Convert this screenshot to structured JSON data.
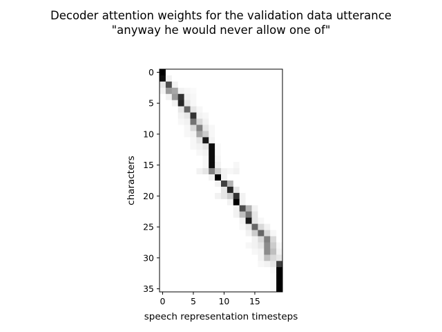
{
  "chart_data": {
    "type": "heatmap",
    "title": "Decoder attention weights for the validation data utterance",
    "subtitle": "\"anyway he would never allow one of\"",
    "xlabel": "speech representation timesteps",
    "ylabel": "characters",
    "x_ticks": [
      "0",
      "5",
      "10",
      "15"
    ],
    "y_ticks": [
      "0",
      "5",
      "10",
      "15",
      "20",
      "25",
      "30",
      "35"
    ],
    "n_cols": 20,
    "n_rows": 36,
    "colormap": "greys",
    "color_low": "#ffffff",
    "color_high": "#000000",
    "weights": [
      [
        1.0,
        0,
        0,
        0,
        0,
        0,
        0,
        0,
        0,
        0,
        0,
        0,
        0,
        0,
        0,
        0,
        0,
        0,
        0,
        0
      ],
      [
        0.95,
        0.05,
        0,
        0,
        0,
        0,
        0,
        0,
        0,
        0,
        0,
        0,
        0,
        0,
        0,
        0,
        0,
        0,
        0,
        0
      ],
      [
        0.1,
        0.7,
        0.05,
        0,
        0,
        0,
        0,
        0,
        0,
        0,
        0,
        0,
        0,
        0,
        0,
        0,
        0,
        0,
        0,
        0
      ],
      [
        0.05,
        0.4,
        0.35,
        0.05,
        0.03,
        0.02,
        0,
        0,
        0,
        0,
        0,
        0,
        0,
        0,
        0,
        0,
        0,
        0,
        0,
        0
      ],
      [
        0,
        0.05,
        0.4,
        0.8,
        0.05,
        0.03,
        0,
        0,
        0,
        0,
        0,
        0,
        0,
        0,
        0,
        0,
        0,
        0,
        0,
        0
      ],
      [
        0,
        0,
        0.05,
        0.85,
        0.1,
        0.03,
        0,
        0,
        0,
        0,
        0,
        0,
        0,
        0,
        0,
        0,
        0,
        0,
        0,
        0
      ],
      [
        0,
        0,
        0,
        0.1,
        0.6,
        0.1,
        0.03,
        0,
        0,
        0,
        0,
        0,
        0,
        0,
        0,
        0,
        0,
        0,
        0,
        0
      ],
      [
        0,
        0,
        0,
        0.05,
        0.1,
        0.8,
        0.05,
        0.03,
        0,
        0,
        0,
        0,
        0,
        0,
        0,
        0,
        0,
        0,
        0,
        0
      ],
      [
        0,
        0,
        0,
        0.03,
        0.05,
        0.55,
        0.15,
        0.05,
        0,
        0,
        0,
        0,
        0,
        0,
        0,
        0,
        0,
        0,
        0,
        0
      ],
      [
        0,
        0,
        0,
        0,
        0.03,
        0.15,
        0.5,
        0.1,
        0.03,
        0,
        0,
        0,
        0,
        0,
        0,
        0,
        0,
        0,
        0,
        0
      ],
      [
        0,
        0,
        0,
        0,
        0.03,
        0.05,
        0.35,
        0.2,
        0.03,
        0,
        0,
        0,
        0,
        0,
        0,
        0,
        0,
        0,
        0,
        0
      ],
      [
        0,
        0,
        0,
        0,
        0,
        0.03,
        0.1,
        0.9,
        0.05,
        0,
        0,
        0,
        0,
        0,
        0,
        0,
        0,
        0,
        0,
        0
      ],
      [
        0,
        0,
        0,
        0,
        0,
        0.03,
        0.05,
        0.1,
        0.95,
        0.02,
        0,
        0,
        0,
        0,
        0,
        0,
        0,
        0,
        0,
        0
      ],
      [
        0,
        0,
        0,
        0,
        0,
        0,
        0.03,
        0.05,
        0.95,
        0.02,
        0,
        0,
        0,
        0,
        0,
        0,
        0,
        0,
        0,
        0
      ],
      [
        0,
        0,
        0,
        0,
        0,
        0,
        0,
        0.03,
        0.95,
        0.03,
        0,
        0,
        0,
        0,
        0,
        0,
        0,
        0,
        0,
        0
      ],
      [
        0,
        0,
        0,
        0,
        0,
        0,
        0,
        0.03,
        0.95,
        0.05,
        0,
        0,
        0.03,
        0,
        0,
        0,
        0,
        0,
        0,
        0
      ],
      [
        0,
        0,
        0,
        0,
        0,
        0,
        0.05,
        0.1,
        0.5,
        0.2,
        0.05,
        0.03,
        0.05,
        0,
        0,
        0,
        0,
        0,
        0,
        0
      ],
      [
        0,
        0,
        0,
        0,
        0,
        0,
        0,
        0,
        0.05,
        1.0,
        0.05,
        0,
        0,
        0,
        0,
        0,
        0,
        0,
        0,
        0
      ],
      [
        0,
        0,
        0,
        0,
        0,
        0,
        0,
        0,
        0,
        0.05,
        0.75,
        0.3,
        0,
        0,
        0,
        0,
        0,
        0,
        0,
        0
      ],
      [
        0,
        0,
        0,
        0,
        0,
        0,
        0,
        0,
        0,
        0,
        0.1,
        0.85,
        0.1,
        0,
        0,
        0,
        0,
        0,
        0,
        0
      ],
      [
        0,
        0,
        0,
        0,
        0,
        0,
        0,
        0,
        0,
        0.05,
        0.1,
        0.2,
        0.8,
        0.05,
        0,
        0,
        0,
        0,
        0,
        0
      ],
      [
        0,
        0,
        0,
        0,
        0,
        0,
        0,
        0,
        0,
        0,
        0,
        0.05,
        1.0,
        0.05,
        0,
        0,
        0,
        0,
        0,
        0
      ],
      [
        0,
        0,
        0,
        0,
        0,
        0,
        0,
        0,
        0,
        0,
        0,
        0,
        0.05,
        0.7,
        0.3,
        0.05,
        0,
        0,
        0,
        0
      ],
      [
        0,
        0,
        0,
        0,
        0,
        0,
        0,
        0,
        0,
        0,
        0,
        0,
        0.05,
        0.25,
        0.55,
        0.1,
        0,
        0,
        0,
        0
      ],
      [
        0,
        0,
        0,
        0,
        0,
        0,
        0,
        0,
        0,
        0,
        0,
        0,
        0,
        0.05,
        0.9,
        0.1,
        0.03,
        0,
        0,
        0
      ],
      [
        0,
        0,
        0,
        0,
        0,
        0,
        0,
        0,
        0,
        0,
        0,
        0,
        0,
        0.03,
        0.1,
        0.6,
        0.15,
        0.05,
        0,
        0
      ],
      [
        0,
        0,
        0,
        0,
        0,
        0,
        0,
        0,
        0,
        0,
        0,
        0,
        0,
        0,
        0.05,
        0.2,
        0.6,
        0.15,
        0.03,
        0
      ],
      [
        0,
        0,
        0,
        0,
        0,
        0,
        0,
        0,
        0,
        0,
        0,
        0,
        0,
        0,
        0,
        0.05,
        0.15,
        0.5,
        0.15,
        0
      ],
      [
        0,
        0,
        0,
        0,
        0,
        0,
        0,
        0,
        0,
        0,
        0,
        0,
        0,
        0,
        0.03,
        0.05,
        0.1,
        0.45,
        0.2,
        0.03
      ],
      [
        0,
        0,
        0,
        0,
        0,
        0,
        0,
        0,
        0,
        0,
        0,
        0,
        0,
        0,
        0,
        0.03,
        0.05,
        0.45,
        0.25,
        0.05
      ],
      [
        0,
        0,
        0,
        0,
        0,
        0,
        0,
        0,
        0,
        0,
        0,
        0,
        0,
        0,
        0,
        0,
        0.05,
        0.25,
        0.15,
        0.1
      ],
      [
        0,
        0,
        0,
        0,
        0,
        0,
        0,
        0,
        0,
        0,
        0,
        0,
        0,
        0,
        0,
        0,
        0.03,
        0.05,
        0.1,
        0.75
      ],
      [
        0,
        0,
        0,
        0,
        0,
        0,
        0,
        0,
        0,
        0,
        0,
        0,
        0,
        0,
        0,
        0,
        0,
        0,
        0.03,
        1.0
      ],
      [
        0,
        0,
        0,
        0,
        0,
        0,
        0,
        0,
        0,
        0,
        0,
        0,
        0,
        0,
        0,
        0,
        0,
        0,
        0.02,
        1.0
      ],
      [
        0,
        0,
        0,
        0,
        0,
        0,
        0,
        0,
        0,
        0,
        0,
        0,
        0,
        0,
        0,
        0,
        0,
        0,
        0.02,
        1.0
      ],
      [
        0,
        0,
        0,
        0,
        0,
        0,
        0,
        0,
        0,
        0,
        0,
        0,
        0,
        0,
        0,
        0,
        0,
        0,
        0.02,
        1.0
      ]
    ]
  }
}
